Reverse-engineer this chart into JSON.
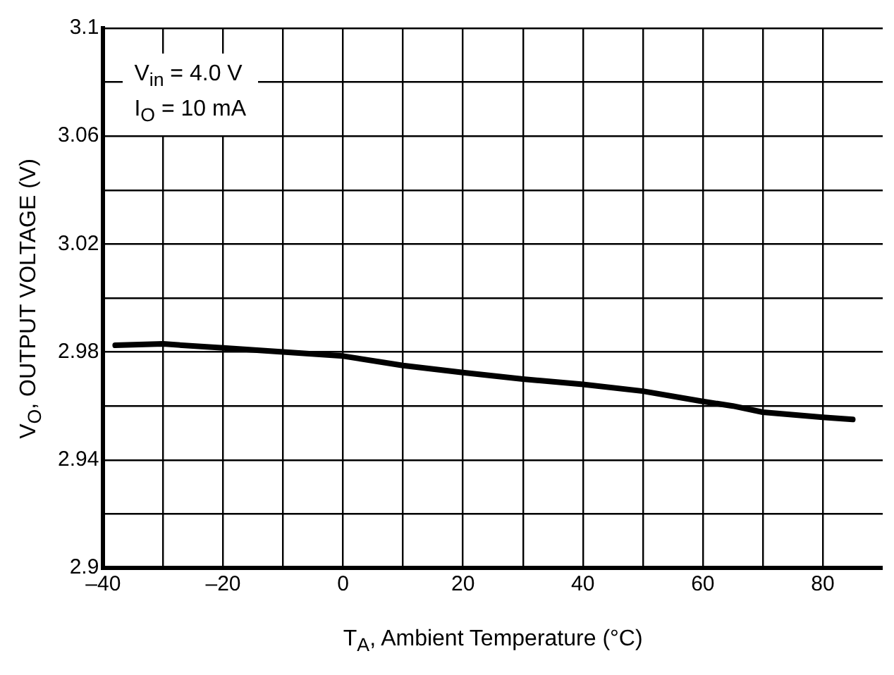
{
  "chart_data": {
    "type": "line",
    "xlabel": "T$_{A}$, Ambient Temperature (°C)",
    "ylabel": "V$_{O}$, OUTPUT VOLTAGE (V)",
    "annotations": [
      "V$_{in}$ = 4.0 V",
      "I$_{O}$ = 10 mA"
    ],
    "x": [
      -38,
      -30,
      -20,
      -10,
      0,
      10,
      20,
      30,
      40,
      50,
      60,
      65,
      70,
      80,
      85
    ],
    "series": [
      {
        "color": "#000000",
        "values": [
          2.9825,
          2.983,
          2.9815,
          2.98,
          2.9785,
          2.975,
          2.9724,
          2.97,
          2.968,
          2.9655,
          2.9617,
          2.96,
          2.9577,
          2.9558,
          2.955
        ]
      }
    ],
    "xlim": [
      -40,
      90
    ],
    "xticks": [
      {
        "value": -40,
        "label": "–40"
      },
      {
        "value": -30,
        "label": null
      },
      {
        "value": -20,
        "label": "–20"
      },
      {
        "value": -10,
        "label": null
      },
      0,
      {
        "value": 10,
        "label": null
      },
      20,
      {
        "value": 30,
        "label": null
      },
      40,
      {
        "value": 50,
        "label": null
      },
      60,
      {
        "value": 70,
        "label": null
      },
      80
    ],
    "ylim": [
      2.9,
      3.1
    ],
    "yticks": [
      2.9,
      {
        "value": 2.92,
        "label": null
      },
      2.94,
      {
        "value": 2.96,
        "label": null
      },
      2.98,
      {
        "value": 3.0,
        "label": null
      },
      3.02,
      {
        "value": 3.04,
        "label": null
      },
      3.06,
      {
        "value": 3.08,
        "label": null
      },
      3.1
    ],
    "grid": true,
    "legend": false,
    "marker": "none",
    "line_style": "solid"
  }
}
